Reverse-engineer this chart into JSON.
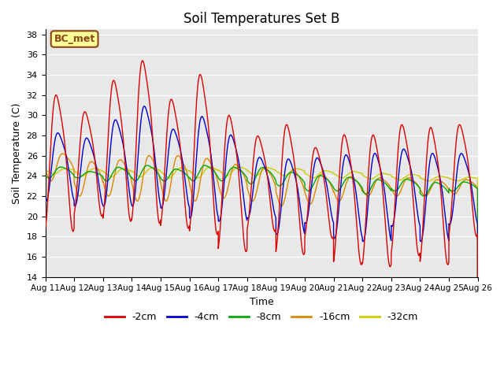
{
  "title": "Soil Temperatures Set B",
  "xlabel": "Time",
  "ylabel": "Soil Temperature (C)",
  "ylim": [
    14,
    38.5
  ],
  "yticks": [
    14,
    16,
    18,
    20,
    22,
    24,
    26,
    28,
    30,
    32,
    34,
    36,
    38
  ],
  "bg_color": "#e8e8e8",
  "annotation_text": "BC_met",
  "annotation_bg": "#ffff99",
  "annotation_border": "#8B4513",
  "line_colors": {
    "-2cm": "#dd0000",
    "-4cm": "#0000cc",
    "-8cm": "#00aa00",
    "-16cm": "#dd8800",
    "-32cm": "#cccc00"
  },
  "legend_labels": [
    "-2cm",
    "-4cm",
    "-8cm",
    "-16cm",
    "-32cm"
  ],
  "n_days": 15,
  "start_day": 11
}
